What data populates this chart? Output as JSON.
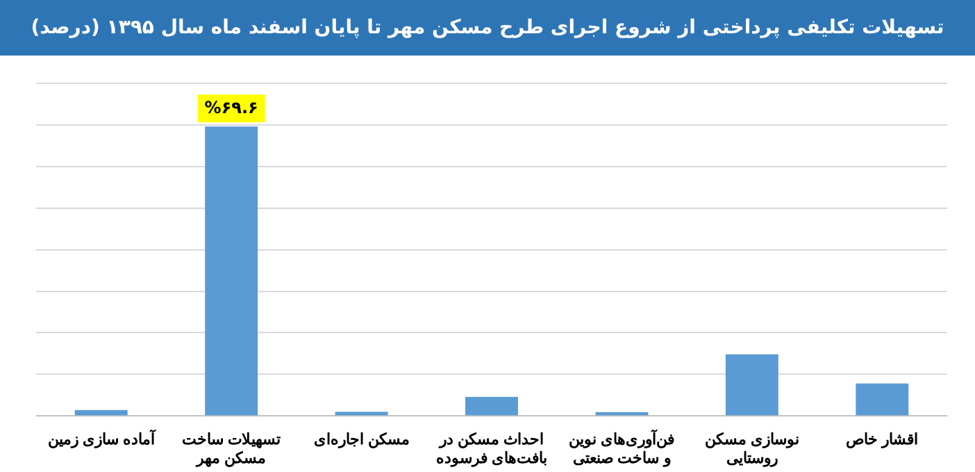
{
  "chart_data": {
    "type": "bar",
    "title": "تسهیلات تکلیفی پرداختی از شروع اجرای طرح مسکن مهر تا پایان اسفند ماه سال ۱۳۹۵ (درصد)",
    "categories": [
      "آماده سازی زمین",
      "تسهیلات ساخت مسکن مهر",
      "مسکن اجاره‌ای",
      "احداث مسکن در بافت‌های فرسوده",
      "فن‌آوری‌های نوین و ساخت صنعتی",
      "نوسازی مسکن روستایی",
      "اقشار خاص"
    ],
    "values": [
      1.4,
      69.6,
      1.0,
      4.6,
      0.9,
      14.8,
      7.8
    ],
    "value_labels": [
      null,
      "%۶۹.۶",
      null,
      null,
      null,
      null,
      null
    ],
    "ylim": [
      0,
      80
    ],
    "yticks": [
      {
        "value": 0,
        "label": null
      },
      {
        "value": 10,
        "label": null
      },
      {
        "value": 20,
        "label": null
      },
      {
        "value": 30,
        "label": null
      },
      {
        "value": 40,
        "label": null
      },
      {
        "value": 50,
        "label": null
      },
      {
        "value": 60,
        "label": null
      },
      {
        "value": 70,
        "label": null
      },
      {
        "value": 80,
        "label": null
      }
    ],
    "grid": "y",
    "color": "#5b9bd5",
    "legend": false
  }
}
